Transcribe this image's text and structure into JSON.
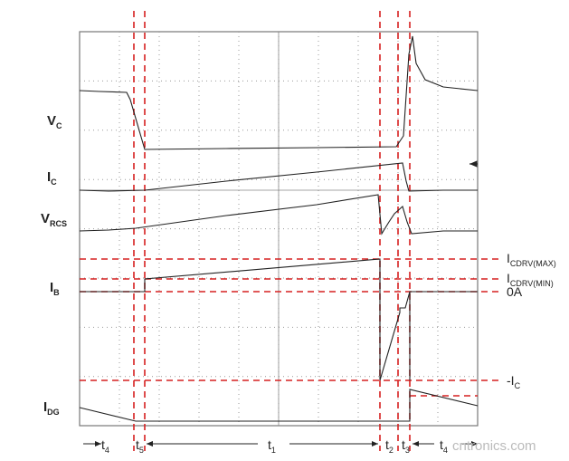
{
  "signals": [
    {
      "main": "V",
      "sub": "C"
    },
    {
      "main": "I",
      "sub": "C"
    },
    {
      "main": "V",
      "sub": "RCS"
    },
    {
      "main": "I",
      "sub": "B"
    },
    {
      "main": "I",
      "sub": "DG"
    }
  ],
  "levels": [
    {
      "main": "I",
      "sub": "CDRV(MAX)"
    },
    {
      "main": "I",
      "sub": "CDRV(MIN)"
    },
    {
      "main": "0A"
    },
    {
      "main": "-I",
      "sub": "C"
    }
  ],
  "intervals": [
    {
      "main": "t",
      "sub": "4"
    },
    {
      "main": "t",
      "sub": "5"
    },
    {
      "main": "t",
      "sub": "1"
    },
    {
      "main": "t",
      "sub": "2"
    },
    {
      "main": "t",
      "sub": "3"
    },
    {
      "main": "t",
      "sub": "4"
    }
  ],
  "watermark": "cntronics.com"
}
